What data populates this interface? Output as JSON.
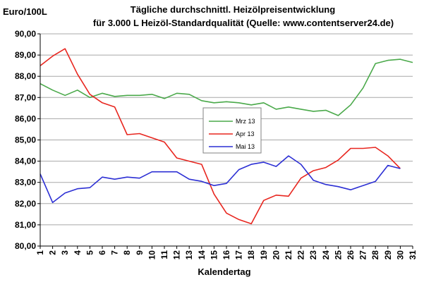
{
  "chart_data": {
    "type": "line",
    "title": "Tägliche durchschnittl. Heizölpreisentwicklung",
    "subtitle": "für 3.000 L Heizöl-Standardqualität (Quelle: www.contentserver24.de)",
    "ylabel": "Euro/100L",
    "xlabel": "Kalendertag",
    "ylim": [
      80,
      90
    ],
    "yticks": [
      "80,00",
      "81,00",
      "82,00",
      "83,00",
      "84,00",
      "85,00",
      "86,00",
      "87,00",
      "88,00",
      "89,00",
      "90,00"
    ],
    "x": [
      "1",
      "2",
      "3",
      "4",
      "5",
      "6",
      "7",
      "8",
      "9",
      "10",
      "11",
      "12",
      "13",
      "14",
      "15",
      "16",
      "17",
      "18",
      "19",
      "20",
      "21",
      "22",
      "23",
      "24",
      "25",
      "26",
      "27",
      "28",
      "29",
      "30",
      "31"
    ],
    "grid": true,
    "legend": "center",
    "series": [
      {
        "name": "Mrz 13",
        "color": "#4aa94a",
        "values": [
          87.65,
          87.35,
          87.1,
          87.35,
          87.0,
          87.2,
          87.05,
          87.1,
          87.1,
          87.15,
          86.95,
          87.2,
          87.15,
          86.85,
          86.75,
          86.8,
          86.75,
          86.65,
          86.75,
          86.45,
          86.55,
          86.45,
          86.35,
          86.4,
          86.15,
          86.65,
          87.45,
          88.6,
          88.75,
          88.8,
          88.65
        ]
      },
      {
        "name": "Apr 13",
        "color": "#e8261f",
        "values": [
          88.5,
          88.95,
          89.3,
          88.1,
          87.15,
          86.75,
          86.55,
          85.25,
          85.3,
          85.1,
          84.9,
          84.15,
          84.0,
          83.85,
          82.45,
          81.55,
          81.25,
          81.05,
          82.15,
          82.4,
          82.35,
          83.2,
          83.55,
          83.7,
          84.05,
          84.6,
          84.6,
          84.65,
          84.25,
          83.65,
          null
        ]
      },
      {
        "name": "Mai 13",
        "color": "#2c2fd4",
        "values": [
          83.4,
          82.05,
          82.5,
          82.7,
          82.75,
          83.25,
          83.15,
          83.25,
          83.2,
          83.5,
          83.5,
          83.5,
          83.15,
          83.05,
          82.85,
          82.95,
          83.6,
          83.85,
          83.95,
          83.75,
          84.25,
          83.85,
          83.1,
          82.9,
          82.8,
          82.65,
          82.85,
          83.05,
          83.8,
          83.65,
          null
        ]
      }
    ]
  }
}
